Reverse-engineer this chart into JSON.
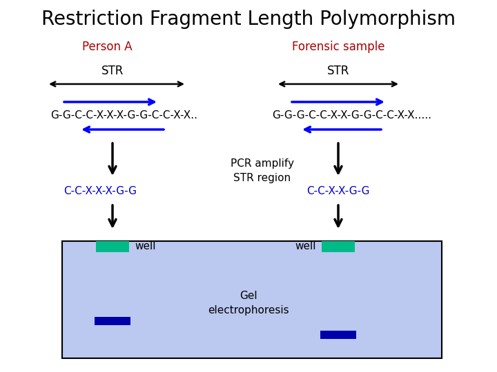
{
  "title": "Restriction Fragment Length Polymorphism",
  "title_fontsize": 20,
  "bg_color": "#ffffff",
  "person_a_label": "Person A",
  "forensic_label": "Forensic sample",
  "label_color": "#aa0000",
  "label_fontsize": 12,
  "str_label": "STR",
  "str_fontsize": 12,
  "dna_left": "G-G-C-C-X-X-X-G-G-C-C-X-X..",
  "dna_right": "G-G-G-C-C-X-X-G-G-C-C-X-X.....",
  "dna_fontsize": 11,
  "pcr_text": "PCR amplify\nSTR region",
  "pcr_fontsize": 11,
  "amplified_left": "C-C-X-X-X-G-G",
  "amplified_right": "C-C-X-X-G-G",
  "amplified_color": "#0000cc",
  "amplified_fontsize": 11,
  "well_label": "well",
  "well_fontsize": 11,
  "gel_text": "Gel\nelectrophoresis",
  "gel_fontsize": 11,
  "gel_bg": "#bbc8f0",
  "well_color": "#00bb88",
  "band_color": "#0000aa"
}
